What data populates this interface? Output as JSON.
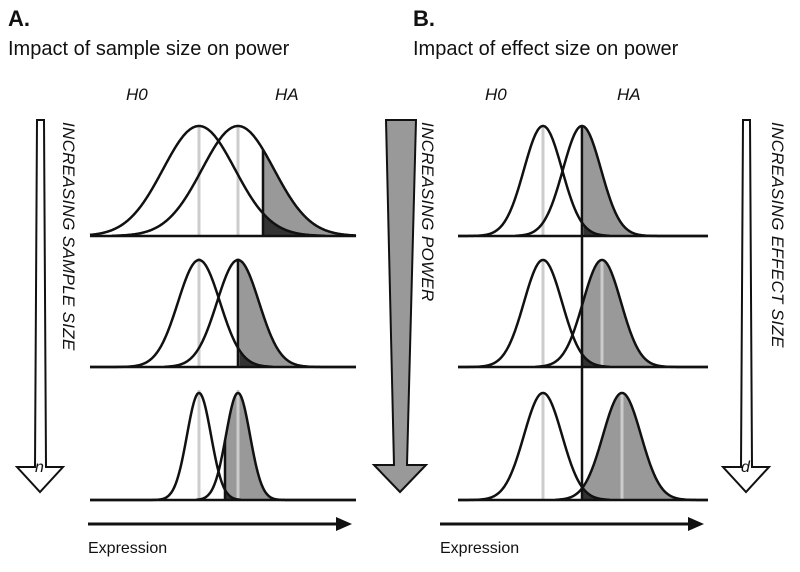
{
  "panels": [
    {
      "letter": "A.",
      "title": "Impact of sample size on power",
      "h0_label": "H0",
      "ha_label": "HA",
      "side_arrow_label": "INCREASING SAMPLE SIZE",
      "side_arrow_symbol": "n",
      "axis_label": "Expression"
    },
    {
      "letter": "B.",
      "title": "Impact of effect size on power",
      "h0_label": "H0",
      "ha_label": "HA",
      "side_arrow_label": "INCREASING EFFECT SIZE",
      "side_arrow_symbol": "d",
      "axis_label": "Expression"
    }
  ],
  "center_arrow_label": "INCREASING POWER",
  "colors": {
    "line": "#111111",
    "power_fill": "#999999",
    "alpha_fill": "#333333",
    "mean_line": "#cccccc",
    "background": "#ffffff"
  }
}
